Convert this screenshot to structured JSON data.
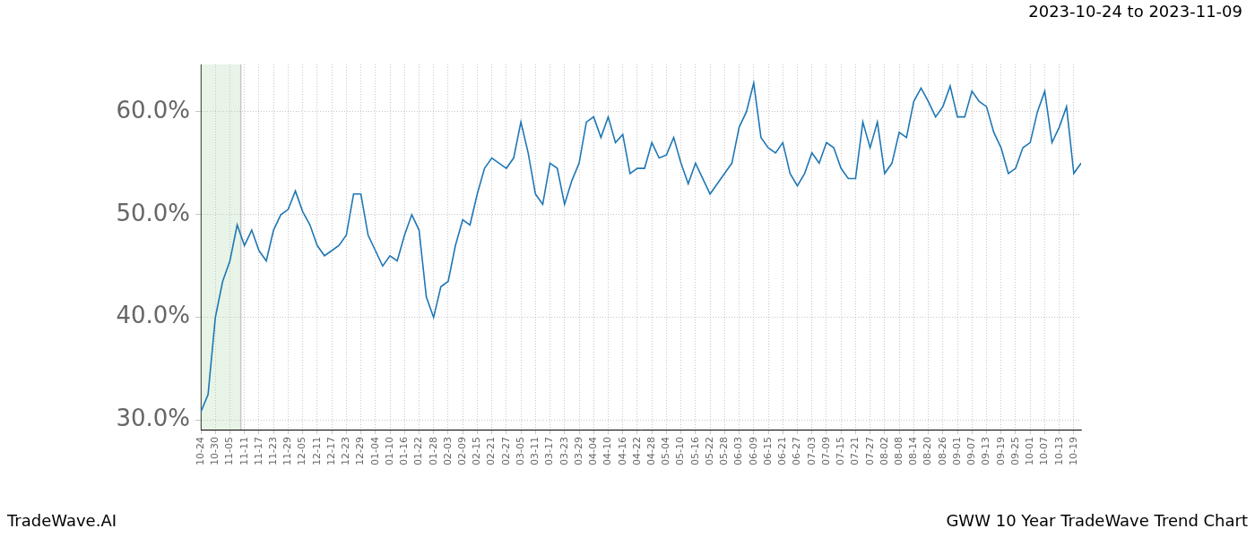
{
  "chart_data": {
    "type": "line",
    "title": "2023-10-24 to 2023-11-09",
    "annotations": [
      "TradeWave.AI",
      "GWW 10 Year TradeWave Trend Chart"
    ],
    "categories": [
      "10-24",
      null,
      "10-30",
      null,
      "11-05",
      null,
      "11-11",
      null,
      "11-17",
      null,
      "11-23",
      null,
      "11-29",
      null,
      "12-05",
      null,
      "12-11",
      null,
      "12-17",
      null,
      "12-23",
      null,
      "12-29",
      null,
      "01-04",
      null,
      "01-10",
      null,
      "01-16",
      null,
      "01-22",
      null,
      "01-28",
      null,
      "02-03",
      null,
      "02-09",
      null,
      "02-15",
      null,
      "02-21",
      null,
      "02-27",
      null,
      "03-05",
      null,
      "03-11",
      null,
      "03-17",
      null,
      "03-23",
      null,
      "03-29",
      null,
      "04-04",
      null,
      "04-10",
      null,
      "04-16",
      null,
      "04-22",
      null,
      "04-28",
      null,
      "05-04",
      null,
      "05-10",
      null,
      "05-16",
      null,
      "05-22",
      null,
      "05-28",
      null,
      "06-03",
      null,
      "06-09",
      null,
      "06-15",
      null,
      "06-21",
      null,
      "06-27",
      null,
      "07-03",
      null,
      "07-09",
      null,
      "07-15",
      null,
      "07-21",
      null,
      "07-27",
      null,
      "08-02",
      null,
      "08-08",
      null,
      "08-14",
      null,
      "08-20",
      null,
      "08-26",
      null,
      "09-01",
      null,
      "09-07",
      null,
      "09-13",
      null,
      "09-19",
      null,
      "09-25",
      null,
      "10-01",
      null,
      "10-07",
      null,
      "10-13",
      null,
      "10-19",
      null
    ],
    "values": [
      30.8,
      32.5,
      40,
      43.5,
      45.5,
      49,
      47,
      48.5,
      46.5,
      45.5,
      48.5,
      50,
      50.5,
      52.3,
      50.3,
      49,
      47,
      46,
      46.5,
      47,
      48,
      52,
      52,
      48,
      46.5,
      45,
      46,
      45.5,
      48,
      50,
      48.5,
      42,
      40,
      43,
      43.5,
      47,
      49.5,
      49,
      52,
      54.5,
      55.5,
      55,
      54.5,
      55.5,
      59,
      56,
      52,
      51,
      55,
      54.5,
      51,
      53.3,
      55,
      59,
      59.5,
      57.5,
      59.5,
      57,
      57.8,
      54,
      54.5,
      54.5,
      57,
      55.5,
      55.8,
      57.5,
      55,
      53,
      55,
      53.5,
      52,
      53,
      54,
      55,
      58.5,
      60,
      62.8,
      57.5,
      56.5,
      56,
      57,
      54,
      52.8,
      54,
      56,
      55,
      57,
      56.5,
      54.5,
      53.5,
      53.5,
      59,
      56.5,
      59,
      54,
      55,
      58,
      57.5,
      61,
      62.3,
      61,
      59.5,
      60.5,
      62.5,
      59.5,
      59.5,
      62,
      61,
      60.5,
      58,
      56.5,
      54,
      54.5,
      56.5,
      57,
      60,
      62,
      57,
      58.5,
      60.5,
      54,
      55
    ],
    "highlight": [
      0,
      5.5
    ],
    "color": "#1f77b4",
    "ylim": [
      29.1,
      64.6
    ],
    "yticks": [
      {
        "value": 30,
        "label": "30.0%"
      },
      {
        "value": 40,
        "label": "40.0%"
      },
      {
        "value": 50,
        "label": "50.0%"
      },
      {
        "value": 60,
        "label": "60.0%"
      }
    ],
    "grid": true
  }
}
